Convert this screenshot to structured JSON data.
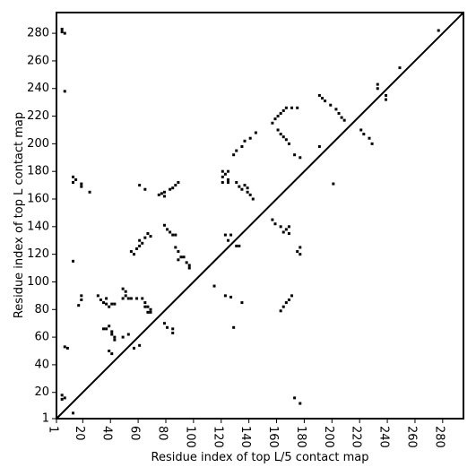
{
  "chart_data": {
    "type": "scatter",
    "x_label": "Residue index of top L/5 contact map",
    "y_label": "Residue index of top L contact map",
    "color": "#000000",
    "xlim": [
      1,
      295
    ],
    "ylim": [
      1,
      295
    ],
    "xticks": [
      1,
      20,
      40,
      60,
      80,
      100,
      120,
      140,
      160,
      180,
      200,
      220,
      240,
      260,
      280
    ],
    "yticks": [
      1,
      20,
      40,
      60,
      80,
      100,
      120,
      140,
      160,
      180,
      200,
      220,
      240,
      260,
      280
    ],
    "x": [
      5,
      5,
      7,
      7,
      7,
      9,
      5,
      5,
      7,
      13,
      13,
      15,
      13,
      19,
      19,
      25,
      13,
      19,
      19,
      17,
      31,
      33,
      35,
      37,
      37,
      39,
      41,
      43,
      35,
      37,
      39,
      41,
      41,
      43,
      43,
      39,
      41,
      49,
      51,
      51,
      49,
      53,
      55,
      59,
      63,
      65,
      65,
      67,
      69,
      69,
      67,
      49,
      53,
      57,
      61,
      55,
      57,
      59,
      61,
      61,
      63,
      65,
      67,
      69,
      61,
      65,
      75,
      77,
      79,
      79,
      83,
      85,
      87,
      89,
      79,
      81,
      83,
      85,
      87,
      87,
      89,
      91,
      93,
      89,
      95,
      97,
      97,
      79,
      81,
      85,
      85,
      115,
      123,
      127,
      129,
      135,
      121,
      123,
      125,
      121,
      125,
      121,
      125,
      123,
      127,
      125,
      131,
      133,
      129,
      131,
      135,
      137,
      141,
      145,
      131,
      133,
      135,
      137,
      139,
      141,
      143,
      139,
      157,
      159,
      163,
      165,
      167,
      169,
      169,
      163,
      165,
      167,
      169,
      171,
      157,
      159,
      161,
      163,
      165,
      167,
      171,
      175,
      161,
      163,
      165,
      167,
      169,
      173,
      177,
      175,
      177,
      177,
      173,
      177,
      191,
      193,
      195,
      199,
      203,
      205,
      207,
      209,
      191,
      201,
      221,
      223,
      227,
      229,
      233,
      233,
      239,
      239,
      249,
      277
    ],
    "y": [
      283,
      281,
      280,
      238,
      53,
      52,
      18,
      15,
      16,
      176,
      172,
      174,
      5,
      171,
      169,
      165,
      115,
      90,
      87,
      83,
      90,
      87,
      85,
      88,
      84,
      82,
      84,
      84,
      66,
      66,
      68,
      64,
      62,
      60,
      58,
      50,
      48,
      95,
      93,
      90,
      88,
      88,
      88,
      88,
      88,
      85,
      82,
      82,
      80,
      78,
      78,
      60,
      62,
      52,
      54,
      122,
      120,
      124,
      126,
      130,
      128,
      132,
      135,
      133,
      170,
      167,
      163,
      164,
      165,
      162,
      167,
      168,
      170,
      172,
      141,
      138,
      136,
      134,
      134,
      125,
      122,
      118,
      118,
      116,
      114,
      112,
      110,
      70,
      67,
      66,
      63,
      97,
      90,
      89,
      67,
      85,
      180,
      178,
      180,
      176,
      174,
      172,
      172,
      134,
      134,
      130,
      126,
      126,
      192,
      195,
      198,
      202,
      204,
      208,
      172,
      169,
      167,
      170,
      165,
      163,
      160,
      168,
      145,
      142,
      140,
      136,
      138,
      135,
      140,
      79,
      82,
      85,
      87,
      90,
      215,
      218,
      220,
      222,
      224,
      226,
      226,
      226,
      210,
      207,
      205,
      203,
      200,
      192,
      190,
      122,
      120,
      125,
      16,
      12,
      235,
      233,
      231,
      228,
      225,
      222,
      219,
      217,
      198,
      171,
      210,
      207,
      204,
      200,
      243,
      240,
      235,
      232,
      255,
      282
    ]
  }
}
